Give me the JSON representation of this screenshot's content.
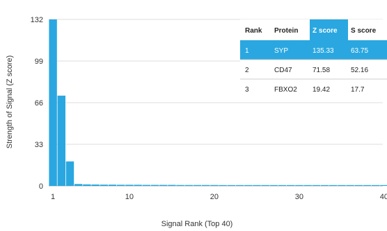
{
  "chart_data": {
    "type": "bar",
    "xlabel": "Signal Rank (Top 40)",
    "ylabel": "Strength of Signal (Z score)",
    "x": [
      1,
      2,
      3,
      4,
      5,
      6,
      7,
      8,
      9,
      10,
      11,
      12,
      13,
      14,
      15,
      16,
      17,
      18,
      19,
      20,
      21,
      22,
      23,
      24,
      25,
      26,
      27,
      28,
      29,
      30,
      31,
      32,
      33,
      34,
      35,
      36,
      37,
      38,
      39,
      40
    ],
    "values": [
      135.33,
      71.58,
      19.42,
      1.5,
      1.2,
      1.1,
      1.0,
      1.0,
      0.9,
      0.9,
      0.9,
      0.8,
      0.8,
      0.8,
      0.8,
      0.7,
      0.7,
      0.7,
      0.7,
      0.7,
      0.6,
      0.6,
      0.6,
      0.6,
      0.6,
      0.6,
      0.5,
      0.5,
      0.5,
      0.5,
      0.5,
      0.5,
      0.5,
      0.5,
      0.4,
      0.4,
      0.4,
      0.4,
      0.4,
      0.4
    ],
    "yticks": [
      0,
      33,
      66,
      99,
      132
    ],
    "xticks": [
      1,
      10,
      20,
      30,
      40
    ],
    "ylim": [
      0,
      132
    ],
    "grid": "horizontal",
    "bar_color": "#2aa7e0",
    "table": {
      "headers": [
        "Rank",
        "Protein",
        "Z score",
        "S score"
      ],
      "rows": [
        [
          "1",
          "SYP",
          "135.33",
          "63.75"
        ],
        [
          "2",
          "CD47",
          "71.58",
          "52.16"
        ],
        [
          "3",
          "FBXO2",
          "19.42",
          "17.7"
        ]
      ],
      "highlight_color": "#2aa7e0"
    }
  }
}
